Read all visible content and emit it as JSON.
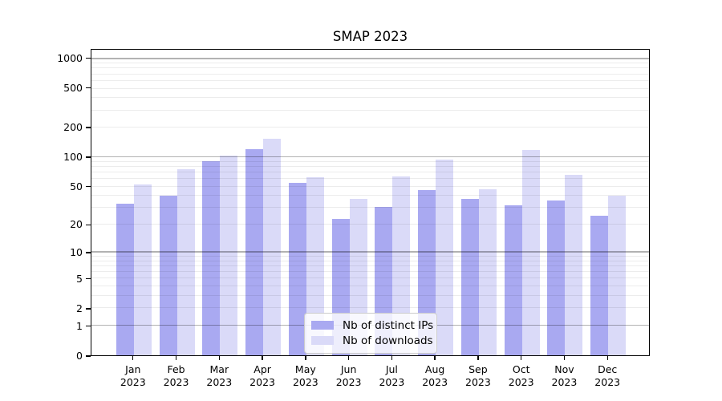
{
  "title": "SMAP 2023",
  "chart_data": {
    "type": "bar",
    "title": "SMAP 2023",
    "categories": [
      "Jan",
      "Feb",
      "Mar",
      "Apr",
      "May",
      "Jun",
      "Jul",
      "Aug",
      "Sep",
      "Oct",
      "Nov",
      "Dec"
    ],
    "category_year": "2023",
    "series": [
      {
        "name": "Nb of distinct IPs",
        "color": "#a9a9f1",
        "values": [
          33,
          40,
          91,
          122,
          55,
          23,
          31,
          46,
          37,
          32,
          36,
          25
        ]
      },
      {
        "name": "Nb of downloads",
        "color": "#dadaf8",
        "values": [
          53,
          75,
          104,
          155,
          62,
          37,
          64,
          95,
          47,
          118,
          66,
          40
        ]
      }
    ],
    "xlabel": "",
    "ylabel": "",
    "yscale": "log1p",
    "yticks": [
      0,
      1,
      2,
      5,
      10,
      20,
      50,
      100,
      200,
      500,
      1000
    ],
    "ylim": [
      0,
      1240
    ],
    "grid": "both",
    "legend_position": "lower-center"
  },
  "legend": {
    "items": [
      {
        "label": "Nb of distinct IPs",
        "color": "#a9a9f1"
      },
      {
        "label": "Nb of downloads",
        "color": "#dadaf8"
      }
    ]
  },
  "colors": {
    "background": "#ffffff",
    "spine": "#000000",
    "grid_major": "#b3b3b3",
    "grid_minor": "#ebebeb",
    "text": "#000000",
    "legend_border": "#cccccc"
  }
}
